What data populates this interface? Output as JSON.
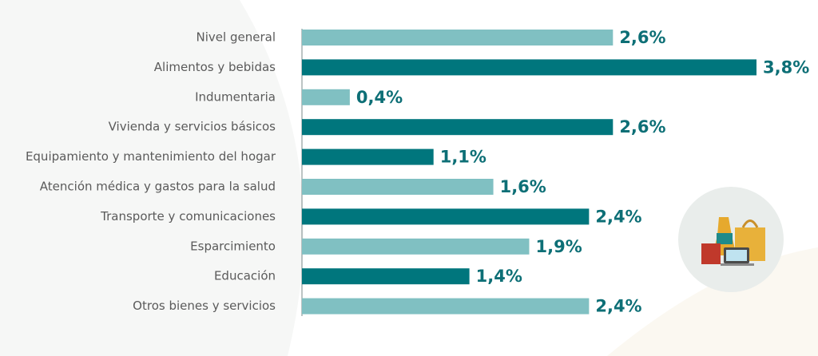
{
  "chart_data": {
    "type": "bar",
    "orientation": "horizontal",
    "categories": [
      "Nivel general",
      "Alimentos y bebidas",
      "Indumentaria",
      "Vivienda y servicios básicos",
      "Equipamiento y mantenimiento del hogar",
      "Atención médica y gastos para la salud",
      "Transporte y comunicaciones",
      "Esparcimiento",
      "Educación",
      "Otros bienes y servicios"
    ],
    "values": [
      2.6,
      3.8,
      0.4,
      2.6,
      1.1,
      1.6,
      2.4,
      1.9,
      1.4,
      2.4
    ],
    "value_labels": [
      "2,6%",
      "3,8%",
      "0,4%",
      "2,6%",
      "1,1%",
      "1,6%",
      "2,4%",
      "1,9%",
      "1,4%",
      "2,4%"
    ],
    "colors": [
      "#80c0c2",
      "#00767d",
      "#80c0c2",
      "#00767d",
      "#00767d",
      "#80c0c2",
      "#00767d",
      "#80c0c2",
      "#00767d",
      "#80c0c2"
    ]
  }
}
